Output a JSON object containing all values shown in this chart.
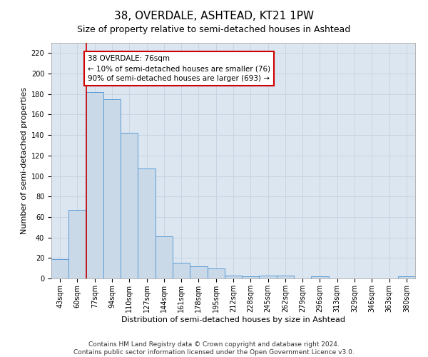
{
  "title": "38, OVERDALE, ASHTEAD, KT21 1PW",
  "subtitle": "Size of property relative to semi-detached houses in Ashtead",
  "xlabel": "Distribution of semi-detached houses by size in Ashtead",
  "ylabel": "Number of semi-detached properties",
  "footer_line1": "Contains HM Land Registry data © Crown copyright and database right 2024.",
  "footer_line2": "Contains public sector information licensed under the Open Government Licence v3.0.",
  "bar_labels": [
    "43sqm",
    "60sqm",
    "77sqm",
    "94sqm",
    "110sqm",
    "127sqm",
    "144sqm",
    "161sqm",
    "178sqm",
    "195sqm",
    "212sqm",
    "228sqm",
    "245sqm",
    "262sqm",
    "279sqm",
    "296sqm",
    "313sqm",
    "329sqm",
    "346sqm",
    "363sqm",
    "380sqm"
  ],
  "bar_values": [
    19,
    67,
    182,
    175,
    142,
    107,
    41,
    15,
    12,
    10,
    3,
    2,
    3,
    3,
    0,
    2,
    0,
    0,
    0,
    0,
    2
  ],
  "bar_color": "#c9d9e8",
  "bar_edge_color": "#5b9bd5",
  "highlight_label": "38 OVERDALE: 76sqm",
  "highlight_smaller": "← 10% of semi-detached houses are smaller (76)",
  "highlight_larger": "90% of semi-detached houses are larger (693) →",
  "annotation_box_color": "#ffffff",
  "annotation_box_edge": "#cc0000",
  "vline_color": "#cc0000",
  "ylim": [
    0,
    230
  ],
  "yticks": [
    0,
    20,
    40,
    60,
    80,
    100,
    120,
    140,
    160,
    180,
    200,
    220
  ],
  "grid_color": "#c8d4e3",
  "bg_color": "#dce6f1",
  "title_fontsize": 11,
  "subtitle_fontsize": 9,
  "axis_label_fontsize": 8,
  "tick_fontsize": 7,
  "annotation_fontsize": 7.5,
  "footer_fontsize": 6.5
}
